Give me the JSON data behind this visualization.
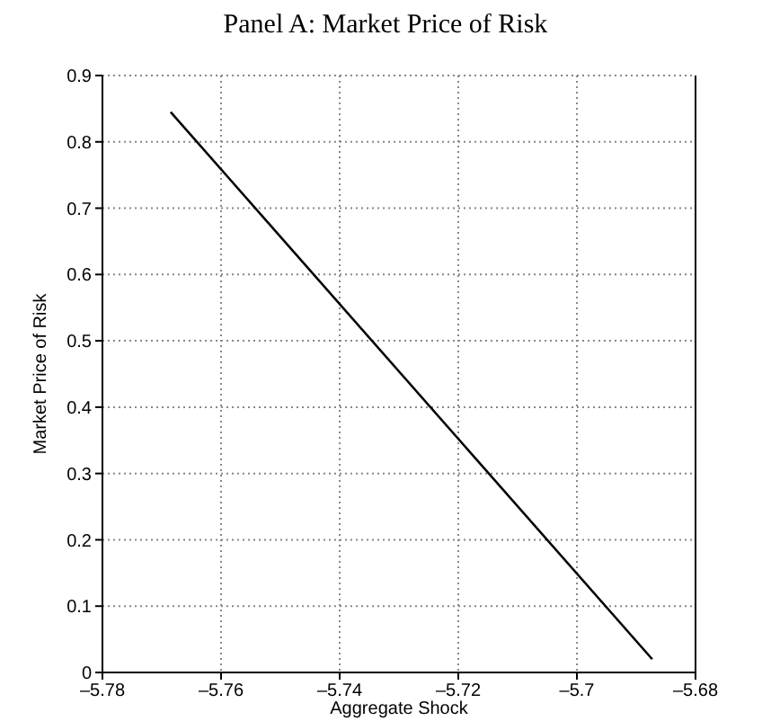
{
  "chart_data": {
    "type": "line",
    "title": "Panel A: Market Price of Risk",
    "xlabel": "Aggregate Shock",
    "ylabel": "Market Price of Risk",
    "x": [
      -5.7685,
      -5.6873
    ],
    "series": [
      {
        "color": "#000000",
        "values": [
          0.845,
          0.02
        ]
      }
    ],
    "xlim": [
      -5.78,
      -5.68
    ],
    "xticks": [
      {
        "value": -5.78,
        "label": "–5.78"
      },
      {
        "value": -5.76,
        "label": "–5.76"
      },
      {
        "value": -5.74,
        "label": "–5.74"
      },
      {
        "value": -5.72,
        "label": "–5.72"
      },
      {
        "value": -5.7,
        "label": "–5.7"
      },
      {
        "value": -5.68,
        "label": "–5.68"
      }
    ],
    "ylim": [
      0,
      0.9
    ],
    "yticks": [
      0,
      0.1,
      0.2,
      0.3,
      0.4,
      0.5,
      0.6,
      0.7,
      0.8,
      0.9
    ],
    "grid": true,
    "line_style": "solid",
    "marker": "none"
  }
}
